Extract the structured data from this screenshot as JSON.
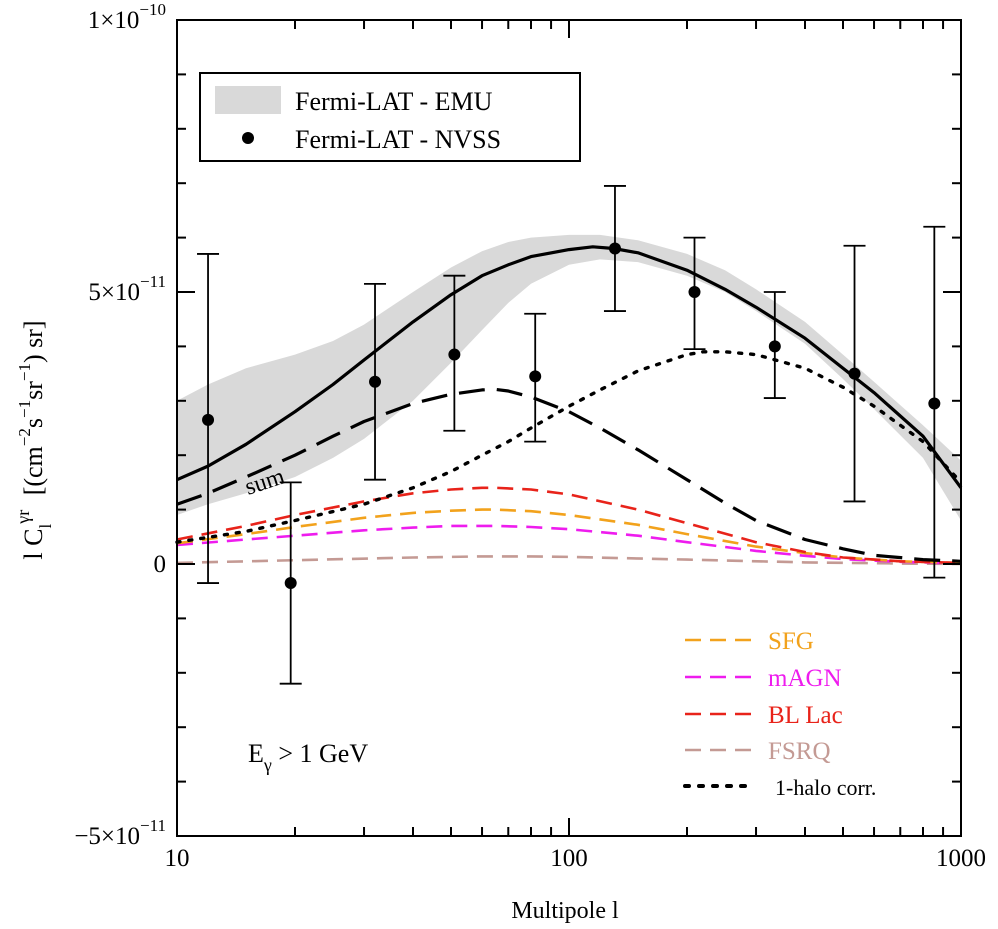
{
  "chart_data": {
    "type": "line",
    "title": "",
    "xlabel": "Multipole l",
    "ylabel": "l C_l^γr [(cm^-2 s^-1 sr^-1) sr]",
    "ylabel_parts": {
      "main": "l C",
      "sub": "l",
      "sup": "γr",
      "unit_a": "[(cm",
      "exp_a": "−2",
      "unit_b": "s",
      "exp_b": "−1",
      "unit_c": "sr",
      "exp_c": "−1",
      "unit_d": ") sr]"
    },
    "xscale": "log",
    "xlim": [
      10,
      1000
    ],
    "ylim": [
      -5e-11,
      1e-10
    ],
    "x_ticks": [
      {
        "value": 10,
        "label": "10"
      },
      {
        "value": 100,
        "label": "100"
      },
      {
        "value": 1000,
        "label": "1000"
      }
    ],
    "y_ticks": [
      {
        "value": -5e-11,
        "base": "−5×10",
        "exp": "−11"
      },
      {
        "value": 0,
        "base": "0",
        "exp": ""
      },
      {
        "value": 5e-11,
        "base": "5×10",
        "exp": "−11"
      },
      {
        "value": 1e-10,
        "base": "1×10",
        "exp": "−10"
      }
    ],
    "emu_band": {
      "name": "Fermi-LAT - EMU",
      "color": "#d9d9d9",
      "x": [
        10,
        12,
        15,
        20,
        25,
        30,
        40,
        50,
        60,
        70,
        80,
        100,
        120,
        150,
        200,
        250,
        300,
        400,
        500,
        600,
        800,
        1000
      ],
      "upper": [
        3e-11,
        3.3e-11,
        3.6e-11,
        3.85e-11,
        4.1e-11,
        4.4e-11,
        5e-11,
        5.45e-11,
        5.75e-11,
        5.92e-11,
        6e-11,
        6.05e-11,
        6.05e-11,
        5.95e-11,
        5.7e-11,
        5.4e-11,
        5.05e-11,
        4.45e-11,
        3.85e-11,
        3.35e-11,
        2.55e-11,
        1.9e-11
      ],
      "lower": [
        9e-12,
        1.1e-11,
        1.3e-11,
        1.6e-11,
        1.95e-11,
        2.3e-11,
        3e-11,
        3.7e-11,
        4.3e-11,
        4.8e-11,
        5.15e-11,
        5.5e-11,
        5.6e-11,
        5.55e-11,
        5.3e-11,
        5e-11,
        4.65e-11,
        4.05e-11,
        3.4e-11,
        2.85e-11,
        1.95e-11,
        8e-12
      ]
    },
    "nvss_points": {
      "name": "Fermi-LAT - NVSS",
      "x": [
        12,
        19.5,
        32,
        51,
        82,
        131,
        209,
        335,
        535,
        855
      ],
      "y": [
        2.65e-11,
        -3.5e-12,
        3.35e-11,
        3.85e-11,
        3.45e-11,
        5.8e-11,
        5e-11,
        4e-11,
        3.5e-11,
        2.95e-11
      ],
      "err_low": [
        -3.5e-12,
        -2.2e-11,
        1.55e-11,
        2.45e-11,
        2.25e-11,
        4.65e-11,
        3.95e-11,
        3.05e-11,
        1.15e-11,
        -2.5e-12
      ],
      "err_high": [
        5.7e-11,
        1.5e-11,
        5.15e-11,
        5.3e-11,
        4.6e-11,
        6.95e-11,
        6e-11,
        5e-11,
        5.85e-11,
        6.2e-11
      ]
    },
    "series": [
      {
        "name": "total",
        "style": "solid",
        "color": "#000000",
        "x": [
          10,
          12,
          15,
          20,
          25,
          30,
          40,
          50,
          60,
          70,
          80,
          100,
          115,
          130,
          150,
          200,
          250,
          300,
          400,
          500,
          600,
          800,
          1000
        ],
        "y": [
          1.55e-11,
          1.8e-11,
          2.2e-11,
          2.8e-11,
          3.3e-11,
          3.75e-11,
          4.45e-11,
          4.95e-11,
          5.3e-11,
          5.5e-11,
          5.65e-11,
          5.78e-11,
          5.83e-11,
          5.8e-11,
          5.72e-11,
          5.4e-11,
          5.05e-11,
          4.72e-11,
          4.15e-11,
          3.6e-11,
          3.15e-11,
          2.35e-11,
          1.4e-11
        ]
      },
      {
        "name": "sum",
        "style": "longdash",
        "color": "#000000",
        "x": [
          10,
          12,
          15,
          20,
          25,
          30,
          40,
          50,
          60,
          65,
          70,
          80,
          100,
          120,
          150,
          200,
          250,
          300,
          400,
          500,
          600,
          800,
          1000
        ],
        "y": [
          1.1e-11,
          1.3e-11,
          1.6e-11,
          2e-11,
          2.35e-11,
          2.62e-11,
          2.95e-11,
          3.12e-11,
          3.2e-11,
          3.21e-11,
          3.18e-11,
          3.07e-11,
          2.8e-11,
          2.5e-11,
          2.1e-11,
          1.55e-11,
          1.12e-11,
          8e-12,
          4.5e-12,
          2.8e-12,
          1.6e-12,
          8e-13,
          5e-13
        ]
      },
      {
        "name": "1-halo corr.",
        "style": "dotted",
        "color": "#000000",
        "x": [
          10,
          15,
          20,
          30,
          40,
          50,
          60,
          70,
          80,
          100,
          120,
          150,
          200,
          220,
          250,
          300,
          400,
          500,
          600,
          800,
          1000
        ],
        "y": [
          4e-12,
          6e-12,
          8e-12,
          1.1e-11,
          1.4e-11,
          1.7e-11,
          2e-11,
          2.25e-11,
          2.5e-11,
          2.9e-11,
          3.2e-11,
          3.55e-11,
          3.85e-11,
          3.9e-11,
          3.9e-11,
          3.85e-11,
          3.6e-11,
          3.25e-11,
          2.9e-11,
          2.25e-11,
          1.5e-11
        ]
      },
      {
        "name": "BL Lac",
        "style": "dashed",
        "color": "#e8231a",
        "x": [
          10,
          15,
          20,
          30,
          40,
          50,
          60,
          65,
          80,
          100,
          150,
          200,
          300,
          400,
          500,
          700,
          1000
        ],
        "y": [
          4.5e-12,
          7e-12,
          9e-12,
          1.15e-11,
          1.3e-11,
          1.37e-11,
          1.4e-11,
          1.4e-11,
          1.37e-11,
          1.28e-11,
          1e-11,
          7.5e-12,
          4e-12,
          2.2e-12,
          1.2e-12,
          5e-13,
          2e-13
        ]
      },
      {
        "name": "SFG",
        "style": "dashed",
        "color": "#f2a21c",
        "x": [
          10,
          15,
          20,
          30,
          40,
          50,
          60,
          65,
          80,
          100,
          150,
          200,
          300,
          400,
          500,
          700,
          1000
        ],
        "y": [
          3.8e-12,
          5.5e-12,
          6.8e-12,
          8.5e-12,
          9.4e-12,
          9.8e-12,
          1e-11,
          1e-11,
          9.7e-12,
          9e-12,
          7.2e-12,
          5.5e-12,
          3.2e-12,
          2e-12,
          1.2e-12,
          5e-13,
          2e-13
        ]
      },
      {
        "name": "mAGN",
        "style": "dashed",
        "color": "#ee1cee",
        "x": [
          10,
          15,
          20,
          30,
          40,
          50,
          60,
          65,
          80,
          100,
          150,
          200,
          300,
          400,
          500,
          700,
          1000
        ],
        "y": [
          3.5e-12,
          4.5e-12,
          5.2e-12,
          6.2e-12,
          6.7e-12,
          7e-12,
          7e-12,
          7e-12,
          6.8e-12,
          6.4e-12,
          5.2e-12,
          4e-12,
          2.4e-12,
          1.5e-12,
          9e-13,
          4e-13,
          1e-13
        ]
      },
      {
        "name": "FSRQ",
        "style": "dashed",
        "color": "#c49a94",
        "x": [
          10,
          20,
          40,
          60,
          80,
          100,
          200,
          400,
          700,
          1000
        ],
        "y": [
          2e-13,
          7e-13,
          1.2e-12,
          1.4e-12,
          1.4e-12,
          1.3e-12,
          8e-13,
          3e-13,
          1e-13,
          0.0
        ]
      }
    ],
    "legend_top": [
      {
        "label": "Fermi-LAT - EMU",
        "kind": "band"
      },
      {
        "label": "Fermi-LAT - NVSS",
        "kind": "point"
      }
    ],
    "legend_bottom": [
      {
        "label": "SFG",
        "color": "#f2a21c",
        "kind": "dashed"
      },
      {
        "label": "mAGN",
        "color": "#ee1cee",
        "kind": "dashed"
      },
      {
        "label": "BL Lac",
        "color": "#e8231a",
        "kind": "dashed"
      },
      {
        "label": "FSRQ",
        "color": "#c49a94",
        "kind": "dashed"
      },
      {
        "label": "1-halo corr.",
        "color": "#000000",
        "kind": "dotted"
      }
    ],
    "annotations": {
      "sum_label": "sum",
      "energy": {
        "main": "E",
        "sub": "γ",
        "rest": " > 1 GeV"
      }
    }
  }
}
